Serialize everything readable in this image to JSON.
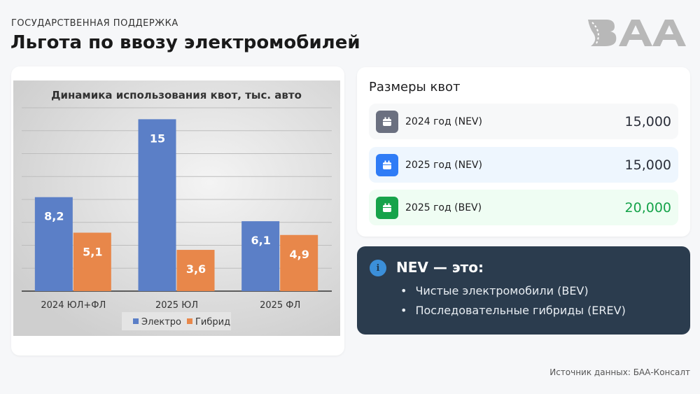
{
  "header": {
    "kicker": "ГОСУДАРСТВЕННАЯ ПОДДЕРЖКА",
    "title": "Льгота по ввозу электромобилей",
    "logo_text": "БАА"
  },
  "chart_data": {
    "type": "bar",
    "title": "Динамика использования квот, тыс. авто",
    "categories": [
      "2024 ЮЛ+ФЛ",
      "2025 ЮЛ",
      "2025 ФЛ"
    ],
    "series": [
      {
        "name": "Электро",
        "color": "#5b7fc7",
        "values": [
          8.2,
          15,
          6.1
        ],
        "labels": [
          "8,2",
          "15",
          "6,1"
        ]
      },
      {
        "name": "Гибрид",
        "color": "#e8874a",
        "values": [
          5.1,
          3.6,
          4.9
        ],
        "labels": [
          "5,1",
          "3,6",
          "4,9"
        ]
      }
    ],
    "ylim": [
      0,
      16
    ],
    "grid": true,
    "legend": "bottom",
    "xlabel": "",
    "ylabel": ""
  },
  "quotas": {
    "title": "Размеры квот",
    "rows": [
      {
        "label": "2024 год (NEV)",
        "value": "15,000",
        "icon": "calendar-icon",
        "icon_color": "#6b7080",
        "bg": "#f7f8f9",
        "value_color": "#2b2f3a"
      },
      {
        "label": "2025 год (NEV)",
        "value": "15,000",
        "icon": "calendar-icon",
        "icon_color": "#2f7cf6",
        "bg": "#eef6fe",
        "value_color": "#2b2f3a"
      },
      {
        "label": "2025 год (BEV)",
        "value": "20,000",
        "icon": "calendar-icon",
        "icon_color": "#16a34a",
        "bg": "#effdf3",
        "value_color": "#16a34a"
      }
    ]
  },
  "nev": {
    "title": "NEV — это:",
    "items": [
      "Чистые электромобили (BEV)",
      "Последовательные гибриды (EREV)"
    ]
  },
  "footer": {
    "source": "Источник данных: БАА-Консалт"
  }
}
